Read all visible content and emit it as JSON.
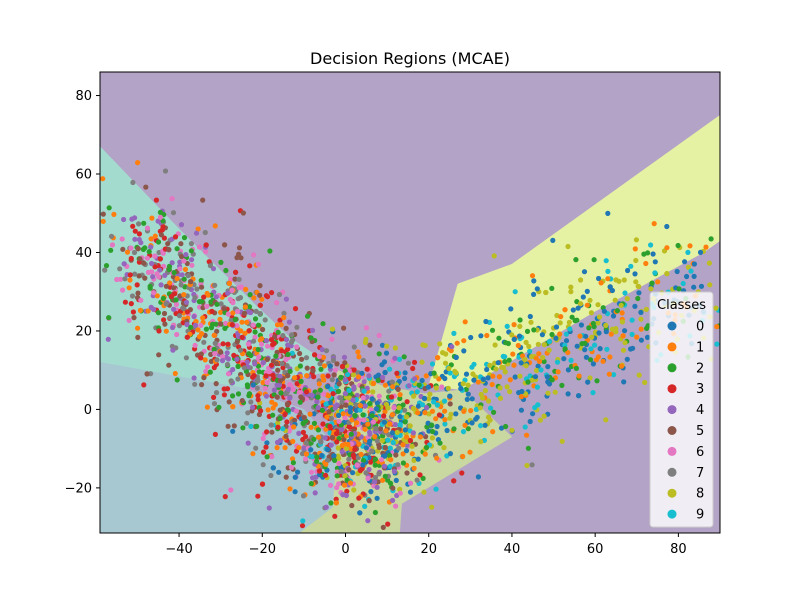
{
  "chart_data": {
    "type": "scatter",
    "title": "Decision Regions (MCAE)",
    "xlabel": "",
    "ylabel": "",
    "xlim": [
      -59,
      90
    ],
    "ylim": [
      -31.5,
      86
    ],
    "xticks": [
      -40,
      -20,
      0,
      20,
      40,
      60,
      80
    ],
    "yticks": [
      -20,
      0,
      20,
      40,
      60,
      80
    ],
    "legend": {
      "title": "Classes",
      "placement": "lower-right"
    },
    "series": [
      {
        "name": "0",
        "color": "#1f77b4"
      },
      {
        "name": "1",
        "color": "#ff7f0e"
      },
      {
        "name": "2",
        "color": "#2ca02c"
      },
      {
        "name": "3",
        "color": "#d62728"
      },
      {
        "name": "4",
        "color": "#9467bd"
      },
      {
        "name": "5",
        "color": "#8c564b"
      },
      {
        "name": "6",
        "color": "#e377c2"
      },
      {
        "name": "7",
        "color": "#7f7f7f"
      },
      {
        "name": "8",
        "color": "#bcbd22"
      },
      {
        "name": "9",
        "color": "#17becf"
      }
    ],
    "regions": [
      {
        "name": "purple-region",
        "color": "#b3a3c6",
        "polygon": [
          [
            -59,
            76
          ],
          [
            -32.5,
            50
          ],
          [
            -19,
            31
          ],
          [
            -2,
            15
          ],
          [
            9,
            6
          ],
          [
            19,
            4
          ],
          [
            28,
            5
          ],
          [
            86,
            40
          ],
          [
            90,
            43
          ],
          [
            90,
            75
          ],
          [
            40,
            37
          ],
          [
            27,
            32
          ],
          [
            20,
            28
          ],
          [
            90,
            86
          ],
          [
            -59,
            86
          ]
        ]
      },
      {
        "name": "purple-region-right",
        "color": "#b3a3c6",
        "polygon": [
          [
            13,
            -31.5
          ],
          [
            13.5,
            -24
          ],
          [
            40,
            -7
          ],
          [
            60,
            12
          ],
          [
            90,
            43
          ],
          [
            90,
            -31.5
          ]
        ]
      },
      {
        "name": "teal-region",
        "color": "#a3dccf",
        "polygon": [
          [
            -59,
            67
          ],
          [
            -40,
            46
          ],
          [
            -31.5,
            37
          ],
          [
            -22,
            27
          ],
          [
            -13,
            18
          ],
          [
            -6,
            13
          ],
          [
            -2,
            10
          ],
          [
            -25,
            5.5
          ],
          [
            -59,
            12
          ]
        ]
      },
      {
        "name": "blue-grey-region",
        "color": "#a8c8d1",
        "polygon": [
          [
            -59,
            12
          ],
          [
            -25,
            5.5
          ],
          [
            -10,
            0
          ],
          [
            -2,
            -10
          ],
          [
            -3,
            -25
          ],
          [
            -11,
            -31.5
          ],
          [
            -59,
            -31.5
          ]
        ]
      },
      {
        "name": "yellow-region",
        "color": "#e6f2a3",
        "polygon": [
          [
            90,
            75
          ],
          [
            90,
            43
          ],
          [
            86,
            40
          ],
          [
            60,
            25
          ],
          [
            28,
            5
          ],
          [
            20,
            6
          ],
          [
            27,
            32
          ],
          [
            40,
            37
          ]
        ]
      },
      {
        "name": "olive-region",
        "color": "#c9d7a1",
        "polygon": [
          [
            -2,
            10
          ],
          [
            9,
            6
          ],
          [
            19,
            4
          ],
          [
            28,
            5
          ],
          [
            40,
            -7
          ],
          [
            13.5,
            -24
          ],
          [
            13,
            -31.5
          ],
          [
            -11,
            -31.5
          ],
          [
            -3,
            -25
          ],
          [
            -2,
            -10
          ]
        ]
      }
    ]
  }
}
